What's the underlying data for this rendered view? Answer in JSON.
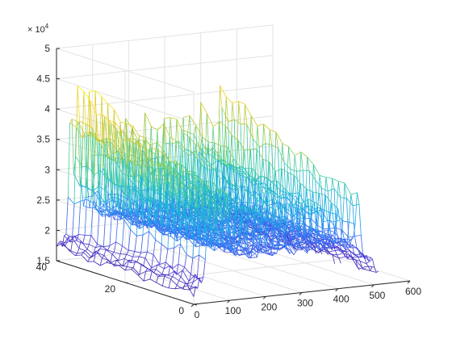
{
  "chart_data": {
    "type": "mesh",
    "title": "",
    "xlabel": "",
    "ylabel": "",
    "zlabel": "",
    "xlim": [
      0,
      600
    ],
    "ylim": [
      0,
      40
    ],
    "zlim": [
      15000,
      50000
    ],
    "x_ticks": [
      "0",
      "100",
      "200",
      "300",
      "400",
      "500",
      "600"
    ],
    "y_ticks": [
      "0",
      "20",
      "40"
    ],
    "z_ticks": [
      "1.5",
      "2",
      "2.5",
      "3",
      "3.5",
      "4",
      "4.5",
      "5"
    ],
    "z_exponent": {
      "base": "× 10",
      "power": "4"
    },
    "x_data_range": [
      0,
      512
    ],
    "y_data_range": [
      0,
      40
    ],
    "grid": true,
    "colormap": [
      "#3e26a8",
      "#4a3ed9",
      "#2f7ff7",
      "#19b2e0",
      "#3fcf9a",
      "#b8c832",
      "#f2ce2c",
      "#f9fb0e"
    ],
    "peaks": [
      {
        "x": 40,
        "z": 42000
      },
      {
        "x": 60,
        "z": 43000
      },
      {
        "x": 90,
        "z": 42000
      },
      {
        "x": 135,
        "z": 37500
      },
      {
        "x": 190,
        "z": 37500
      },
      {
        "x": 245,
        "z": 37500
      },
      {
        "x": 300,
        "z": 37500
      },
      {
        "x": 350,
        "z": 37500
      },
      {
        "x": 400,
        "z": 37500
      },
      {
        "x": 455,
        "z": 42000
      }
    ],
    "baseline_z": 22000,
    "edge_z": 17000
  }
}
